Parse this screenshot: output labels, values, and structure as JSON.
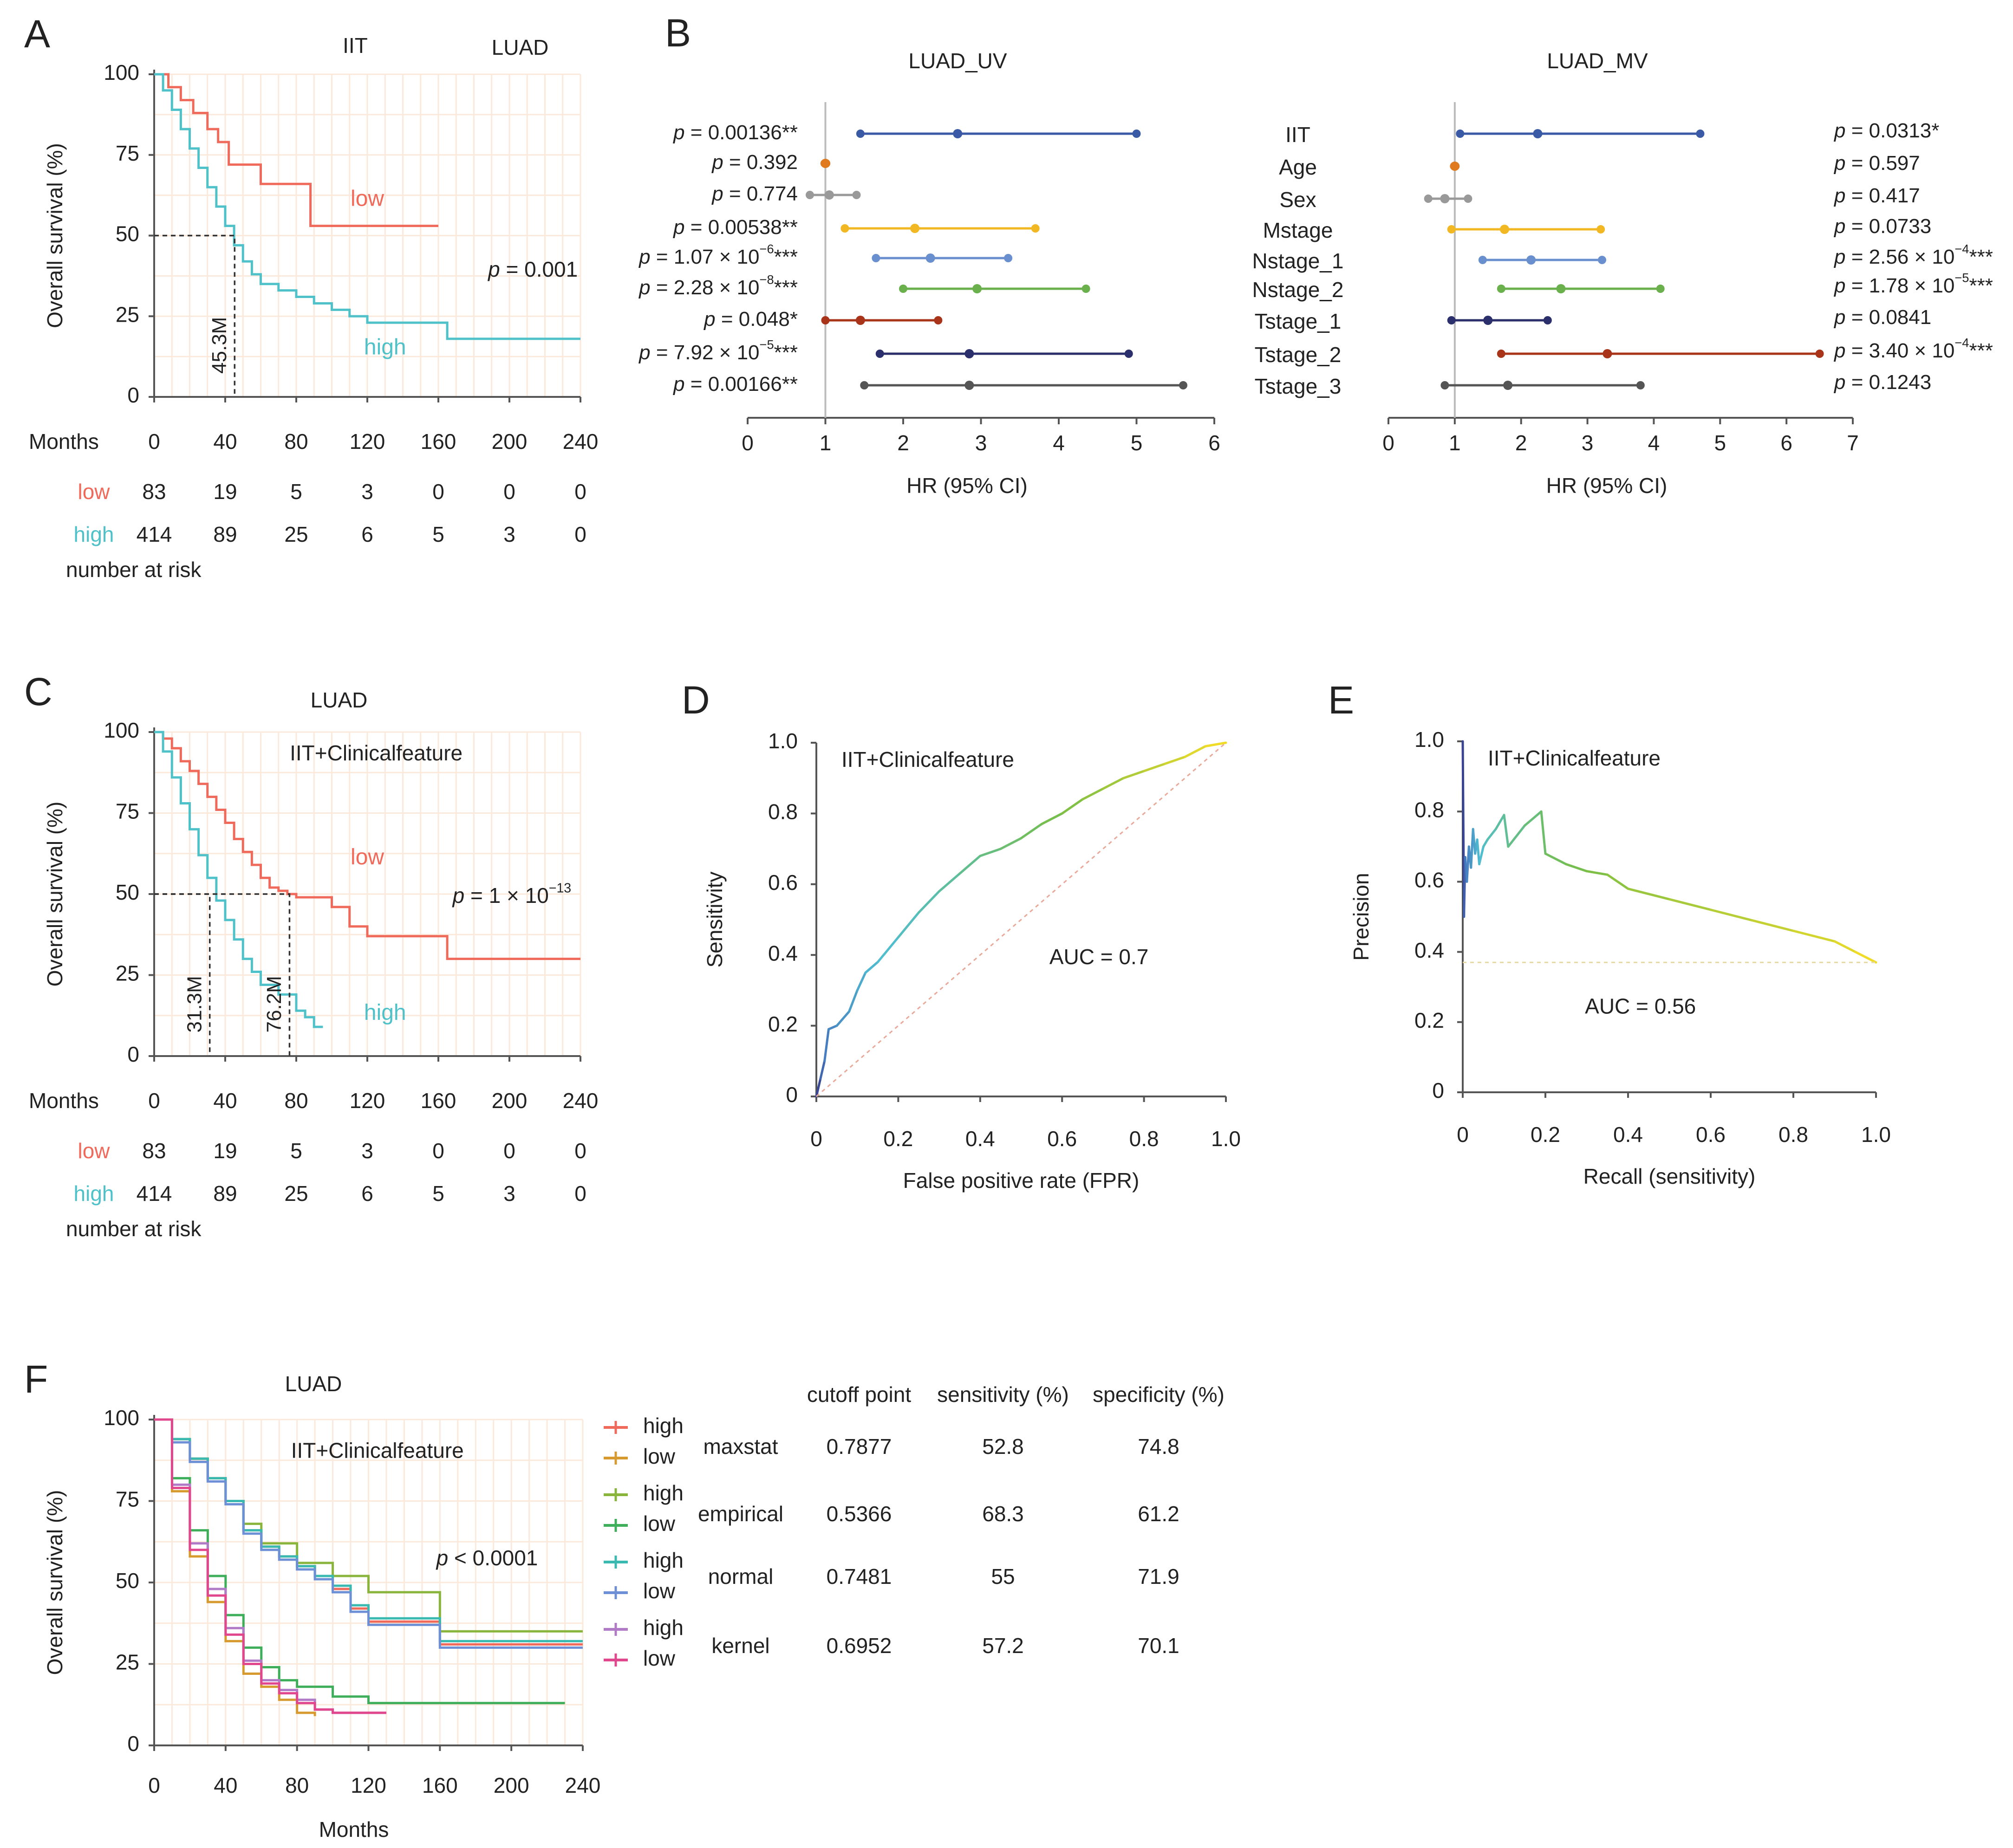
{
  "colors": {
    "low": "#ef6a5a",
    "high": "#4fc1c9",
    "axis": "#555555",
    "grid": "#fbe9dc"
  },
  "chart_data": [
    {
      "id": "A",
      "type": "line",
      "panel_label": "A",
      "titles": [
        "IIT",
        "LUAD"
      ],
      "xlabel": "Months",
      "ylabel": "Overall survival (%)",
      "xticks": [
        "0",
        "40",
        "80",
        "120",
        "160",
        "200",
        "240"
      ],
      "yticks": [
        "100",
        "75",
        "50",
        "25",
        "0"
      ],
      "xlim": [
        0,
        240
      ],
      "ylim": [
        0,
        100
      ],
      "series": [
        {
          "name": "low",
          "color": "#ef6a5a",
          "x": [
            0,
            8,
            15,
            22,
            30,
            36,
            42,
            60,
            88,
            160
          ],
          "y": [
            100,
            96,
            92,
            88,
            83,
            79,
            72,
            66,
            53,
            53
          ]
        },
        {
          "name": "high",
          "color": "#4fc1c9",
          "x": [
            0,
            5,
            10,
            15,
            20,
            25,
            30,
            35,
            40,
            45,
            50,
            55,
            60,
            70,
            80,
            90,
            100,
            110,
            120,
            140,
            165,
            240
          ],
          "y": [
            100,
            95,
            89,
            83,
            77,
            71,
            65,
            59,
            53,
            47,
            42,
            38,
            35,
            33,
            31,
            29,
            27,
            25,
            23,
            23,
            18,
            18
          ]
        }
      ],
      "series_labels": [
        {
          "text": "low",
          "color": "#ef6a5a",
          "x": 120,
          "y": 61
        },
        {
          "text": "high",
          "color": "#4fc1c9",
          "x": 130,
          "y": 15
        }
      ],
      "median_lines": [
        {
          "x": 45.3,
          "label": "45.3M"
        }
      ],
      "pvalue": {
        "text": "p = 0.001",
        "x": 188,
        "y": 39
      },
      "risk_table": {
        "header": "Months",
        "rows": [
          {
            "name": "low",
            "color": "#ef6a5a",
            "values": [
              "83",
              "19",
              "5",
              "3",
              "0",
              "0",
              "0"
            ]
          },
          {
            "name": "high",
            "color": "#4fc1c9",
            "values": [
              "414",
              "89",
              "25",
              "6",
              "5",
              "3",
              "0"
            ]
          }
        ],
        "footer": "number at risk"
      }
    },
    {
      "id": "B1",
      "type": "forest",
      "panel_label": "B",
      "title": "LUAD_UV",
      "xlabel": "HR (95% CI)",
      "xlim": [
        0,
        6
      ],
      "xticks": [
        "0",
        "1",
        "2",
        "3",
        "4",
        "5",
        "6"
      ],
      "ref": 1,
      "rows": [
        {
          "p_main": "p = 0.00136**",
          "hr": 2.7,
          "lo": 1.45,
          "hi": 5.0,
          "color": "#3b5aa6"
        },
        {
          "p_main": "p = 0.392",
          "hr": 1.0,
          "lo": 0.99,
          "hi": 1.01,
          "color": "#e07a1f"
        },
        {
          "p_main": "p = 0.774",
          "hr": 1.05,
          "lo": 0.8,
          "hi": 1.4,
          "color": "#999999"
        },
        {
          "p_main": "p = 0.00538**",
          "hr": 2.15,
          "lo": 1.25,
          "hi": 3.7,
          "color": "#f2b824"
        },
        {
          "p_main": "p = 1.07 × 10",
          "p_exp": "−6",
          "p_stars": "***",
          "hr": 2.35,
          "lo": 1.65,
          "hi": 3.35,
          "color": "#6a8fcf"
        },
        {
          "p_main": "p = 2.28 × 10",
          "p_exp": "−8",
          "p_stars": "***",
          "hr": 2.95,
          "lo": 2.0,
          "hi": 4.35,
          "color": "#6ab04c"
        },
        {
          "p_main": "p = 0.048*",
          "hr": 1.45,
          "lo": 1.0,
          "hi": 2.45,
          "color": "#a8341a"
        },
        {
          "p_main": "p = 7.92 × 10",
          "p_exp": "−5",
          "p_stars": "***",
          "hr": 2.85,
          "lo": 1.7,
          "hi": 4.9,
          "color": "#2b2f6b"
        },
        {
          "p_main": "p = 0.00166**",
          "hr": 2.85,
          "lo": 1.5,
          "hi": 5.6,
          "color": "#555555"
        }
      ]
    },
    {
      "id": "B2",
      "type": "forest",
      "title": "LUAD_MV",
      "xlabel": "HR (95% CI)",
      "xlim": [
        0,
        7
      ],
      "xticks": [
        "0",
        "1",
        "2",
        "3",
        "4",
        "5",
        "6",
        "7"
      ],
      "ref": 1,
      "rows": [
        {
          "label": "IIT",
          "p_main": "p = 0.0313*",
          "hr": 2.25,
          "lo": 1.08,
          "hi": 4.7,
          "color": "#3b5aa6"
        },
        {
          "label": "Age",
          "p_main": "p = 0.597",
          "hr": 1.0,
          "lo": 0.99,
          "hi": 1.01,
          "color": "#e07a1f"
        },
        {
          "label": "Sex",
          "p_main": "p = 0.417",
          "hr": 0.85,
          "lo": 0.6,
          "hi": 1.2,
          "color": "#999999"
        },
        {
          "label": "Mstage",
          "p_main": "p = 0.0733",
          "hr": 1.75,
          "lo": 0.95,
          "hi": 3.2,
          "color": "#f2b824"
        },
        {
          "label": "Nstage_1",
          "p_main": "p = 2.56 × 10",
          "p_exp": "−4",
          "p_stars": "***",
          "hr": 2.15,
          "lo": 1.42,
          "hi": 3.22,
          "color": "#6a8fcf"
        },
        {
          "label": "Nstage_2",
          "p_main": "p = 1.78 × 10",
          "p_exp": "−5",
          "p_stars": "***",
          "hr": 2.6,
          "lo": 1.7,
          "hi": 4.1,
          "color": "#6ab04c"
        },
        {
          "label": "Tstage_1",
          "p_main": "p = 0.0841",
          "hr": 1.5,
          "lo": 0.95,
          "hi": 2.4,
          "color": "#2b2f6b"
        },
        {
          "label": "Tstage_2",
          "p_main": "p = 3.40 × 10",
          "p_exp": "−4",
          "p_stars": "***",
          "hr": 3.3,
          "lo": 1.7,
          "hi": 6.5,
          "color": "#a8341a"
        },
        {
          "label": "Tstage_3",
          "p_main": "p = 0.1243",
          "hr": 1.8,
          "lo": 0.85,
          "hi": 3.8,
          "color": "#555555"
        }
      ]
    },
    {
      "id": "C",
      "type": "line",
      "panel_label": "C",
      "titles": [
        "LUAD"
      ],
      "inner_title": "IIT+Clinicalfeature",
      "xlabel": "Months",
      "ylabel": "Overall survival (%)",
      "xticks": [
        "0",
        "40",
        "80",
        "120",
        "160",
        "200",
        "240"
      ],
      "yticks": [
        "100",
        "75",
        "50",
        "25",
        "0"
      ],
      "xlim": [
        0,
        240
      ],
      "ylim": [
        0,
        100
      ],
      "series": [
        {
          "name": "low",
          "color": "#ef6a5a",
          "x": [
            0,
            5,
            10,
            15,
            20,
            25,
            30,
            35,
            40,
            45,
            50,
            55,
            60,
            65,
            70,
            75,
            80,
            100,
            110,
            120,
            140,
            165,
            240
          ],
          "y": [
            100,
            98,
            95,
            91,
            88,
            84,
            80,
            76,
            72,
            67,
            63,
            59,
            55,
            52,
            51,
            50,
            49,
            46,
            40,
            37,
            37,
            30,
            30
          ]
        },
        {
          "name": "high",
          "color": "#4fc1c9",
          "x": [
            0,
            5,
            10,
            15,
            20,
            25,
            30,
            35,
            40,
            45,
            50,
            55,
            60,
            70,
            80,
            85,
            90,
            95
          ],
          "y": [
            100,
            94,
            86,
            78,
            70,
            62,
            55,
            48,
            42,
            36,
            30,
            26,
            22,
            19,
            14,
            12,
            9,
            9
          ]
        }
      ],
      "series_labels": [
        {
          "text": "low",
          "color": "#ef6a5a",
          "x": 120,
          "y": 61
        },
        {
          "text": "high",
          "color": "#4fc1c9",
          "x": 130,
          "y": 13
        }
      ],
      "median_lines": [
        {
          "x": 31.3,
          "label": "31.3M"
        },
        {
          "x": 76.2,
          "label": "76.2M"
        }
      ],
      "pvalue": {
        "text": "p = 1 × 10",
        "exp": "−13",
        "x": 168,
        "y": 49
      },
      "risk_table": {
        "header": "Months",
        "rows": [
          {
            "name": "low",
            "color": "#ef6a5a",
            "values": [
              "83",
              "19",
              "5",
              "3",
              "0",
              "0",
              "0"
            ]
          },
          {
            "name": "high",
            "color": "#4fc1c9",
            "values": [
              "414",
              "89",
              "25",
              "6",
              "5",
              "3",
              "0"
            ]
          }
        ],
        "footer": "number at risk"
      }
    },
    {
      "id": "D",
      "type": "line",
      "panel_label": "D",
      "inner_title": "IIT+Clinicalfeature",
      "xlabel": "False positive rate (FPR)",
      "ylabel": "Sensitivity",
      "xlim": [
        0,
        1
      ],
      "ylim": [
        0,
        1
      ],
      "xticks": [
        "0",
        "0.2",
        "0.4",
        "0.6",
        "0.8",
        "1.0"
      ],
      "yticks": [
        "0",
        "0.2",
        "0.4",
        "0.6",
        "0.8",
        "1.0"
      ],
      "x": [
        0,
        0.01,
        0.02,
        0.03,
        0.05,
        0.08,
        0.1,
        0.12,
        0.15,
        0.2,
        0.25,
        0.3,
        0.35,
        0.4,
        0.45,
        0.5,
        0.55,
        0.6,
        0.65,
        0.7,
        0.75,
        0.8,
        0.85,
        0.9,
        0.95,
        1.0
      ],
      "y": [
        0,
        0.05,
        0.1,
        0.19,
        0.2,
        0.24,
        0.3,
        0.35,
        0.38,
        0.45,
        0.52,
        0.58,
        0.63,
        0.68,
        0.7,
        0.73,
        0.77,
        0.8,
        0.84,
        0.87,
        0.9,
        0.92,
        0.94,
        0.96,
        0.99,
        1.0
      ],
      "auc": "AUC = 0.7"
    },
    {
      "id": "E",
      "type": "line",
      "panel_label": "E",
      "inner_title": "IIT+Clinicalfeature",
      "xlabel": "Recall (sensitivity)",
      "ylabel": "Precision",
      "xlim": [
        0,
        1
      ],
      "ylim": [
        0,
        1
      ],
      "xticks": [
        "0",
        "0.2",
        "0.4",
        "0.6",
        "0.8",
        "1.0"
      ],
      "yticks": [
        "0",
        "0.2",
        "0.4",
        "0.6",
        "0.8",
        "1.0"
      ],
      "x": [
        0,
        0.003,
        0.006,
        0.01,
        0.015,
        0.02,
        0.025,
        0.03,
        0.035,
        0.04,
        0.05,
        0.06,
        0.08,
        0.1,
        0.11,
        0.15,
        0.19,
        0.2,
        0.25,
        0.3,
        0.35,
        0.4,
        0.5,
        0.6,
        0.7,
        0.8,
        0.9,
        0.95,
        1.0
      ],
      "y": [
        1.0,
        0.5,
        0.67,
        0.6,
        0.7,
        0.64,
        0.75,
        0.68,
        0.72,
        0.65,
        0.7,
        0.72,
        0.75,
        0.79,
        0.7,
        0.76,
        0.8,
        0.68,
        0.65,
        0.63,
        0.62,
        0.58,
        0.55,
        0.52,
        0.49,
        0.46,
        0.43,
        0.4,
        0.37
      ],
      "baseline": 0.37,
      "auc": "AUC = 0.56"
    },
    {
      "id": "F",
      "type": "line",
      "panel_label": "F",
      "titles": [
        "LUAD"
      ],
      "inner_title": "IIT+Clinicalfeature",
      "xlabel": "Months",
      "ylabel": "Overall survival (%)",
      "xticks": [
        "0",
        "40",
        "80",
        "120",
        "160",
        "200",
        "240"
      ],
      "yticks": [
        "100",
        "75",
        "50",
        "25",
        "0"
      ],
      "xlim": [
        0,
        240
      ],
      "ylim": [
        0,
        100
      ],
      "pvalue": {
        "text": "p < 0.0001",
        "x": 158,
        "y": 57
      },
      "series": [
        {
          "name": "maxstat high",
          "color": "#ef6a5a",
          "x": [
            0,
            10,
            20,
            30,
            40,
            50,
            60,
            70,
            80,
            90,
            100,
            110,
            120,
            160,
            240
          ],
          "y": [
            100,
            94,
            88,
            82,
            75,
            66,
            61,
            58,
            55,
            52,
            48,
            42,
            38,
            31,
            31
          ]
        },
        {
          "name": "maxstat low",
          "color": "#d69a2f",
          "x": [
            0,
            10,
            20,
            30,
            40,
            50,
            60,
            70,
            80,
            90
          ],
          "y": [
            100,
            78,
            58,
            44,
            32,
            22,
            18,
            14,
            10,
            9
          ]
        },
        {
          "name": "empirical high",
          "color": "#8ab53c",
          "x": [
            0,
            10,
            20,
            30,
            40,
            50,
            60,
            80,
            100,
            120,
            160,
            240
          ],
          "y": [
            100,
            94,
            88,
            82,
            75,
            68,
            62,
            56,
            52,
            47,
            35,
            35
          ]
        },
        {
          "name": "empirical low",
          "color": "#3fae5a",
          "x": [
            0,
            10,
            20,
            30,
            40,
            50,
            60,
            70,
            80,
            100,
            120,
            230
          ],
          "y": [
            100,
            82,
            66,
            52,
            40,
            30,
            24,
            20,
            18,
            15,
            13,
            13
          ]
        },
        {
          "name": "normal high",
          "color": "#39b9b0",
          "x": [
            0,
            10,
            20,
            30,
            40,
            50,
            60,
            70,
            80,
            90,
            100,
            110,
            120,
            160,
            240
          ],
          "y": [
            100,
            94,
            88,
            82,
            75,
            66,
            61,
            58,
            55,
            52,
            49,
            43,
            39,
            32,
            32
          ]
        },
        {
          "name": "normal low",
          "color": "#6c8fd6",
          "x": [
            0,
            10,
            20,
            30,
            40,
            50,
            60,
            70,
            80,
            90,
            100,
            110,
            120,
            160,
            240
          ],
          "y": [
            100,
            93,
            87,
            81,
            74,
            65,
            60,
            57,
            54,
            51,
            47,
            41,
            37,
            30,
            30
          ]
        },
        {
          "name": "kernel high",
          "color": "#b07ac7",
          "x": [
            0,
            10,
            20,
            30,
            40,
            50,
            60,
            70,
            80,
            90,
            100,
            130
          ],
          "y": [
            100,
            80,
            62,
            48,
            36,
            26,
            20,
            17,
            14,
            11,
            10,
            10
          ]
        },
        {
          "name": "kernel low",
          "color": "#e0478d",
          "x": [
            0,
            10,
            20,
            30,
            40,
            50,
            60,
            70,
            80,
            90,
            100,
            130
          ],
          "y": [
            100,
            79,
            60,
            46,
            34,
            25,
            19,
            16,
            13,
            11,
            10,
            10
          ]
        }
      ],
      "legend": [
        {
          "text": "high",
          "color": "#ef6a5a"
        },
        {
          "text": "low",
          "color": "#d69a2f"
        },
        {
          "text": "high",
          "color": "#8ab53c"
        },
        {
          "text": "low",
          "color": "#3fae5a"
        },
        {
          "text": "high",
          "color": "#39b9b0"
        },
        {
          "text": "low",
          "color": "#6c8fd6"
        },
        {
          "text": "high",
          "color": "#b07ac7"
        },
        {
          "text": "low",
          "color": "#e0478d"
        }
      ],
      "table": {
        "headers": [
          "cutoff point",
          "sensitivity (%)",
          "specificity (%)"
        ],
        "rows": [
          {
            "method": "maxstat",
            "cutoff": "0.7877",
            "sensitivity": "52.8",
            "specificity": "74.8"
          },
          {
            "method": "empirical",
            "cutoff": "0.5366",
            "sensitivity": "68.3",
            "specificity": "61.2"
          },
          {
            "method": "normal",
            "cutoff": "0.7481",
            "sensitivity": "55",
            "specificity": "71.9"
          },
          {
            "method": "kernel",
            "cutoff": "0.6952",
            "sensitivity": "57.2",
            "specificity": "70.1"
          }
        ]
      }
    }
  ]
}
